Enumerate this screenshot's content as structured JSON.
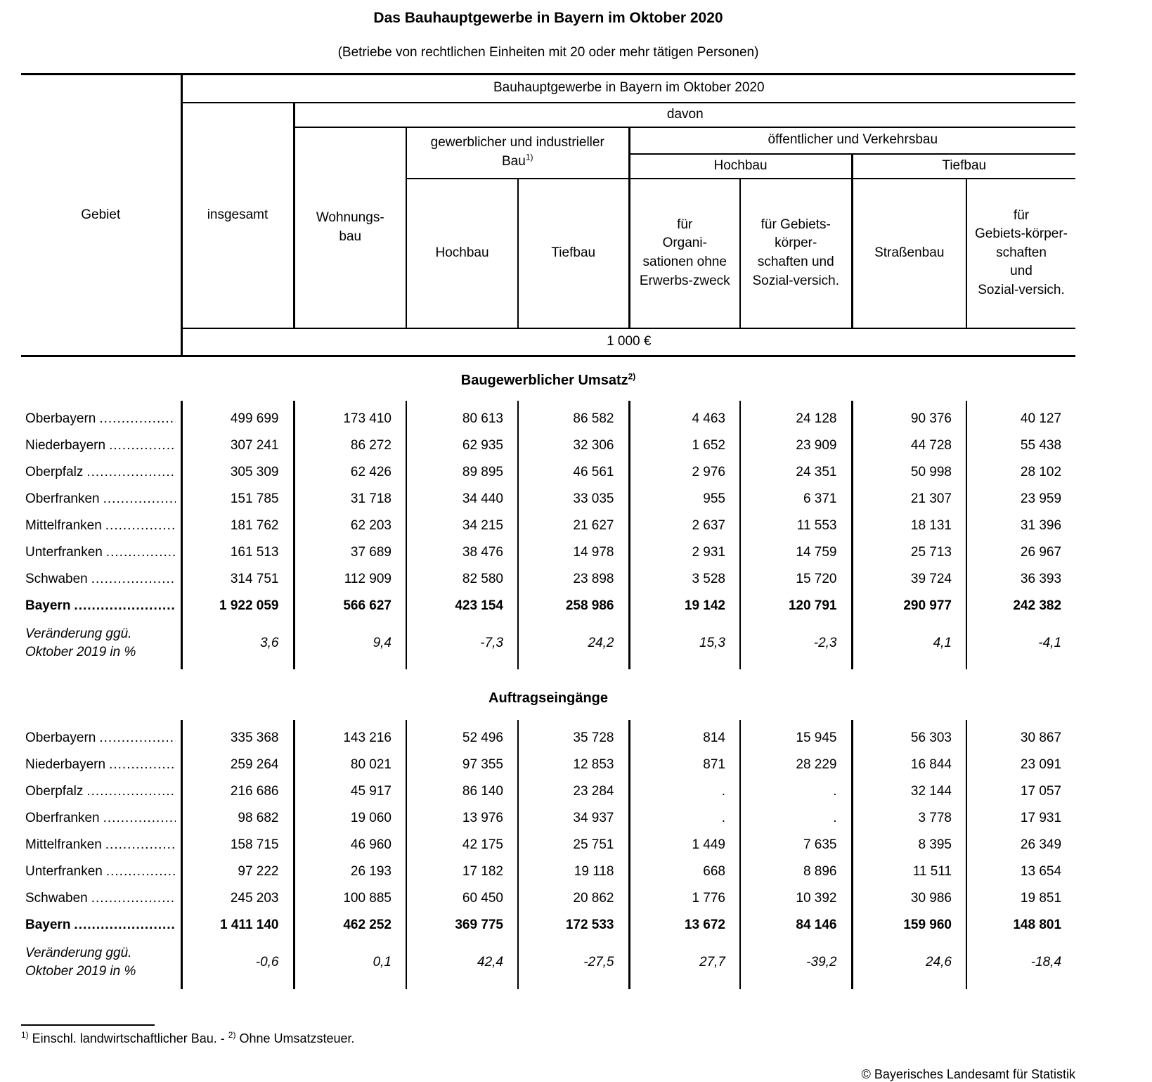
{
  "page": {
    "title": "Das Bauhauptgewerbe in Bayern im Oktober 2020",
    "subtitle": "(Betriebe von rechtlichen Einheiten mit 20 oder mehr tätigen Personen)",
    "footnotes": {
      "fn1_sup": "1)",
      "fn1_text": " Einschl. landwirtschaftlicher Bau. - ",
      "fn2_sup": "2)",
      "fn2_text": " Ohne Umsatzsteuer."
    },
    "footer": "© Bayerisches Landesamt für Statistik"
  },
  "table": {
    "header": {
      "gebiet": "Gebiet",
      "top_span": "Bauhauptgewerbe in Bayern im Oktober 2020",
      "davon": "davon",
      "gewerblich_l1": "gewerblicher und industrieller",
      "gewerblich_l2": "Bau",
      "gewerblich_sup": "1)",
      "oeffentlich": "öffentlicher und Verkehrsbau",
      "group_hochbau": "Hochbau",
      "group_tiefbau": "Tiefbau",
      "col_insgesamt": "insgesamt",
      "col_wohnungsbau": "Wohnungs-\nbau",
      "col_hochbau": "Hochbau",
      "col_tiefbau": "Tiefbau",
      "col_fuer_org": "für\nOrgani-\nsationen ohne\nErwerbs-zweck",
      "col_fuer_gebiets_hoch": "für Gebiets-\nkörper-\nschaften und\nSozial-versich.",
      "col_strassenbau": "Straßenbau",
      "col_fuer_gebiets_tief": "für\nGebiets-körper-\nschaften\nund\nSozial-versich.",
      "unit": "1 000 €"
    },
    "sections": [
      {
        "title": "Baugewerblicher Umsatz",
        "title_sup": "2)",
        "rows": [
          {
            "label": "Oberbayern",
            "values": [
              "499 699",
              "173 410",
              "80 613",
              "86 582",
              "4 463",
              "24 128",
              "90 376",
              "40 127"
            ]
          },
          {
            "label": "Niederbayern",
            "values": [
              "307 241",
              "86 272",
              "62 935",
              "32 306",
              "1 652",
              "23 909",
              "44 728",
              "55 438"
            ]
          },
          {
            "label": "Oberpfalz",
            "values": [
              "305 309",
              "62 426",
              "89 895",
              "46 561",
              "2 976",
              "24 351",
              "50 998",
              "28 102"
            ]
          },
          {
            "label": "Oberfranken",
            "values": [
              "151 785",
              "31 718",
              "34 440",
              "33 035",
              "955",
              "6 371",
              "21 307",
              "23 959"
            ]
          },
          {
            "label": "Mittelfranken",
            "values": [
              "181 762",
              "62 203",
              "34 215",
              "21 627",
              "2 637",
              "11 553",
              "18 131",
              "31 396"
            ]
          },
          {
            "label": "Unterfranken",
            "values": [
              "161 513",
              "37 689",
              "38 476",
              "14 978",
              "2 931",
              "14 759",
              "25 713",
              "26 967"
            ]
          },
          {
            "label": "Schwaben",
            "values": [
              "314 751",
              "112 909",
              "82 580",
              "23 898",
              "3 528",
              "15 720",
              "39 724",
              "36 393"
            ]
          },
          {
            "label": "Bayern",
            "bold": true,
            "values": [
              "1 922 059",
              "566 627",
              "423 154",
              "258 986",
              "19 142",
              "120 791",
              "290 977",
              "242 382"
            ]
          },
          {
            "label": "Veränderung ggü.\nOktober 2019 in %",
            "change": true,
            "values": [
              "3,6",
              "9,4",
              "-7,3",
              "24,2",
              "15,3",
              "-2,3",
              "4,1",
              "-4,1"
            ]
          }
        ]
      },
      {
        "title": "Auftragseingänge",
        "title_sup": "",
        "rows": [
          {
            "label": "Oberbayern",
            "values": [
              "335 368",
              "143 216",
              "52 496",
              "35 728",
              "814",
              "15 945",
              "56 303",
              "30 867"
            ]
          },
          {
            "label": "Niederbayern",
            "values": [
              "259 264",
              "80 021",
              "97 355",
              "12 853",
              "871",
              "28 229",
              "16 844",
              "23 091"
            ]
          },
          {
            "label": "Oberpfalz",
            "values": [
              "216 686",
              "45 917",
              "86 140",
              "23 284",
              ".",
              ".",
              "32 144",
              "17 057"
            ]
          },
          {
            "label": "Oberfranken",
            "values": [
              "98 682",
              "19 060",
              "13 976",
              "34 937",
              ".",
              ".",
              "3 778",
              "17 931"
            ]
          },
          {
            "label": "Mittelfranken",
            "values": [
              "158 715",
              "46 960",
              "42 175",
              "25 751",
              "1 449",
              "7 635",
              "8 395",
              "26 349"
            ]
          },
          {
            "label": "Unterfranken",
            "values": [
              "97 222",
              "26 193",
              "17 182",
              "19 118",
              "668",
              "8 896",
              "11 511",
              "13 654"
            ]
          },
          {
            "label": "Schwaben",
            "values": [
              "245 203",
              "100 885",
              "60 450",
              "20 862",
              "1 776",
              "10 392",
              "30 986",
              "19 851"
            ]
          },
          {
            "label": "Bayern",
            "bold": true,
            "values": [
              "1 411 140",
              "462 252",
              "369 775",
              "172 533",
              "13 672",
              "84 146",
              "159 960",
              "148 801"
            ]
          },
          {
            "label": "Veränderung ggü.\nOktober 2019 in %",
            "change": true,
            "values": [
              "-0,6",
              "0,1",
              "42,4",
              "-27,5",
              "27,7",
              "-39,2",
              "24,6",
              "-18,4"
            ]
          }
        ]
      }
    ]
  }
}
